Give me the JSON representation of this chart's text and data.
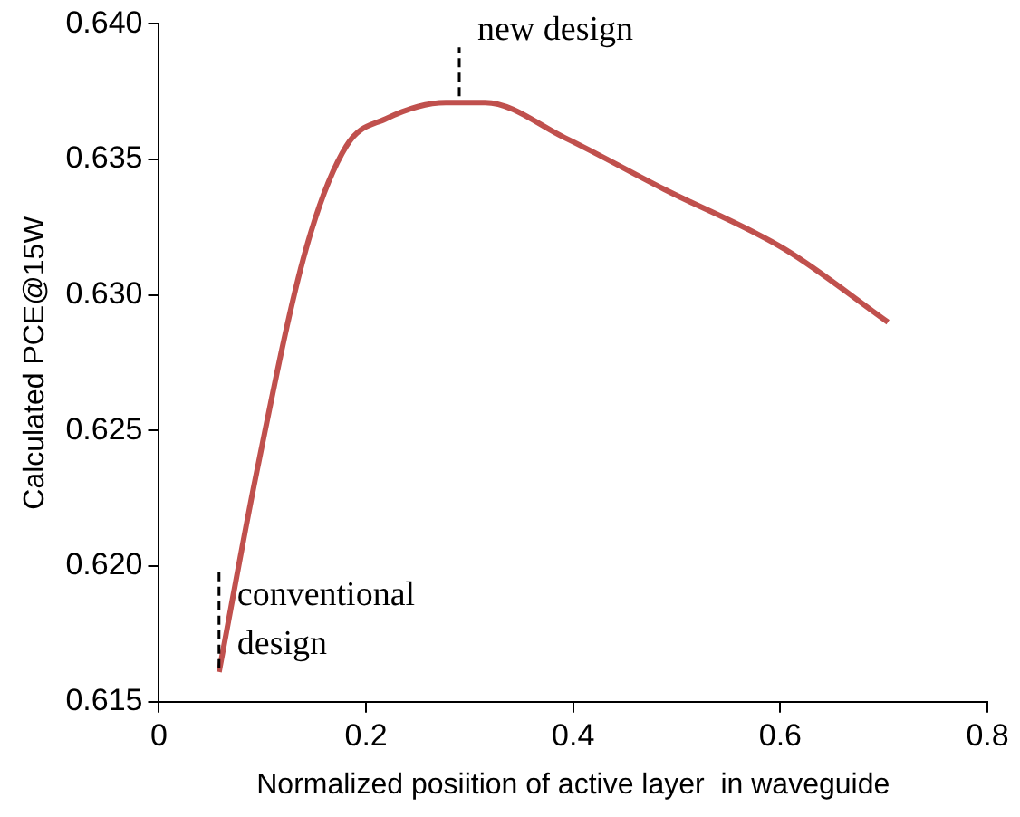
{
  "chart_data": {
    "type": "line",
    "xlabel": "Normalized posiition of active layer  in waveguide",
    "ylabel": "Calculated PCE@15W",
    "x": [
      0.058,
      0.094,
      0.142,
      0.181,
      0.219,
      0.277,
      0.315,
      0.392,
      0.488,
      0.604,
      0.704
    ],
    "series": [
      {
        "color": "#c0504d",
        "values": [
          0.6161,
          0.6234,
          0.6317,
          0.6355,
          0.6365,
          0.6371,
          0.6371,
          0.6358,
          0.6339,
          0.6317,
          0.629
        ]
      }
    ],
    "xlim": [
      0,
      0.8
    ],
    "xticks": [
      0,
      0.2,
      0.4,
      0.6,
      0.8
    ],
    "ylim": [
      0.615,
      0.64
    ],
    "yticks": [
      0.615,
      {
        "value": 0.62,
        "label": "0.620"
      },
      0.625,
      {
        "value": 0.63,
        "label": "0.630"
      },
      0.635,
      {
        "value": 0.64,
        "label": "0.640"
      }
    ],
    "annotations": [
      {
        "text": "new design",
        "x": 0.29,
        "y": 0.6372
      },
      {
        "text": "conventional\ndesign",
        "x": 0.058,
        "y": 0.6161
      }
    ],
    "grid": false,
    "legend": false,
    "marker": "none",
    "line_style": "solid"
  }
}
